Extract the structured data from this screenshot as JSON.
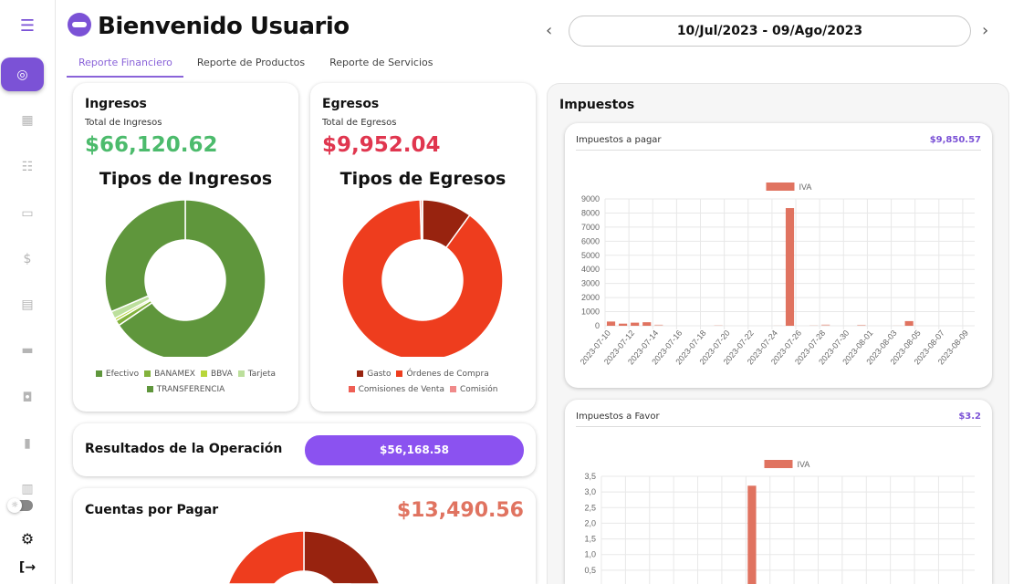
{
  "header": {
    "title": "Bienvenido Usuario",
    "date_range": "10/Jul/2023 - 09/Ago/2023"
  },
  "tabs": [
    {
      "label": "Reporte Financiero"
    },
    {
      "label": "Reporte de Productos"
    },
    {
      "label": "Reporte de Servicios"
    }
  ],
  "ingresos": {
    "title": "Ingresos",
    "subtitle": "Total de Ingresos",
    "amount": "$66,120.62",
    "chart_title": "Tipos de Ingresos"
  },
  "egresos": {
    "title": "Egresos",
    "subtitle": "Total de Egresos",
    "amount": "$9,952.04",
    "chart_title": "Tipos de Egresos"
  },
  "resultados": {
    "title": "Resultados de la Operación",
    "amount": "$56,168.58"
  },
  "cuentas": {
    "title": "Cuentas por Pagar",
    "amount": "$13,490.56"
  },
  "impuestos": {
    "title": "Impuestos",
    "pagar": {
      "title": "Impuestos a pagar",
      "amount": "$9,850.57"
    },
    "favor": {
      "title": "Impuestos a Favor",
      "amount": "$3.2"
    }
  },
  "colors": {
    "accent": "#7b52d6",
    "income": "#4cbb6c",
    "expense": "#e0364f",
    "bar": "#e07360",
    "button": "#8b52f0"
  },
  "chart_data": [
    {
      "type": "pie",
      "name": "ingresos",
      "categories": [
        "Efectivo",
        "BANAMEX",
        "BBVA",
        "Tarjeta",
        "TRANSFERENCIA"
      ],
      "values": [
        43300,
        700,
        350,
        1000,
        20770
      ],
      "colors": [
        "#5f963c",
        "#82b23c",
        "#b8d63a",
        "#bcdf9c",
        "#5f963c"
      ]
    },
    {
      "type": "pie",
      "name": "egresos",
      "categories": [
        "Gasto",
        "Órdenes de Compra",
        "Comisiones de Venta",
        "Comisión"
      ],
      "values": [
        995,
        8910,
        40,
        7
      ],
      "colors": [
        "#98230f",
        "#ee3d1e",
        "#ef5f55",
        "#f08a8a"
      ]
    },
    {
      "type": "pie",
      "name": "cuentas",
      "categories": [
        "Gasto",
        "Órdenes de Compra"
      ],
      "values": [
        5400,
        8090
      ],
      "colors": [
        "#98230f",
        "#ee3d1e"
      ]
    },
    {
      "type": "bar",
      "name": "pagar",
      "legend": "IVA",
      "ylim": [
        0,
        9000
      ],
      "yticks": [
        "0",
        "1000",
        "2000",
        "3000",
        "4000",
        "5000",
        "6000",
        "7000",
        "8000",
        "9000"
      ],
      "x": [
        "2023-07-10",
        "2023-07-11",
        "2023-07-12",
        "2023-07-13",
        "2023-07-14",
        "2023-07-15",
        "2023-07-16",
        "2023-07-17",
        "2023-07-18",
        "2023-07-19",
        "2023-07-20",
        "2023-07-21",
        "2023-07-22",
        "2023-07-23",
        "2023-07-24",
        "2023-07-25",
        "2023-07-26",
        "2023-07-27",
        "2023-07-28",
        "2023-07-29",
        "2023-07-30",
        "2023-07-31",
        "2023-08-01",
        "2023-08-02",
        "2023-08-03",
        "2023-08-04",
        "2023-08-05",
        "2023-08-06",
        "2023-08-07",
        "2023-08-08",
        "2023-08-09"
      ],
      "xticks": [
        "2023-07-10",
        "2023-07-12",
        "2023-07-14",
        "2023-07-16",
        "2023-07-18",
        "2023-07-20",
        "2023-07-22",
        "2023-07-24",
        "2023-07-26",
        "2023-07-28",
        "2023-07-30",
        "2023-08-01",
        "2023-08-03",
        "2023-08-05",
        "2023-08-07",
        "2023-08-09"
      ],
      "values": [
        300,
        150,
        220,
        250,
        80,
        0,
        0,
        0,
        0,
        30,
        0,
        0,
        0,
        0,
        10,
        8350,
        0,
        20,
        90,
        0,
        0,
        70,
        0,
        0,
        10,
        330,
        0,
        0,
        0,
        0,
        0
      ]
    },
    {
      "type": "bar",
      "name": "favor",
      "legend": "IVA",
      "ylim": [
        0,
        3.5
      ],
      "yticks": [
        "0,5",
        "1,0",
        "1,5",
        "2,0",
        "2,5",
        "3,0",
        "3,5"
      ],
      "values": [
        0,
        0,
        0,
        0,
        0,
        0,
        0,
        0,
        0,
        0,
        0,
        0,
        3.2,
        0,
        0,
        0,
        0,
        0,
        0,
        0,
        0,
        0,
        0,
        0,
        0,
        0,
        0,
        0,
        0,
        0,
        0
      ]
    }
  ]
}
